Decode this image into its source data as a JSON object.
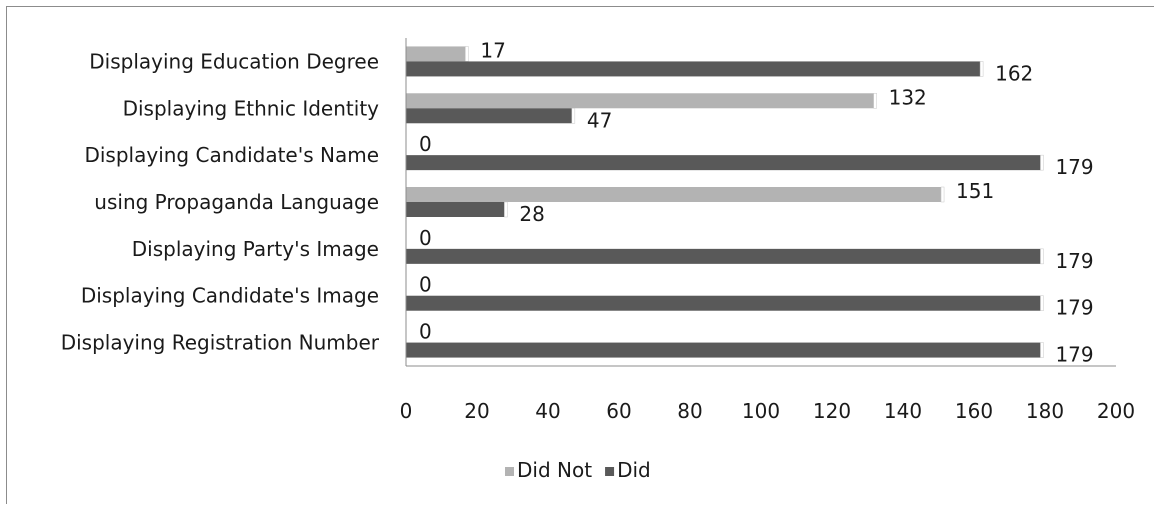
{
  "chart_data": {
    "type": "bar",
    "orientation": "horizontal",
    "categories": [
      "Displaying Education Degree",
      "Displaying Ethnic Identity",
      "Displaying Candidate's Name",
      "using Propaganda Language",
      "Displaying Party's Image",
      "Displaying Candidate's Image",
      "Displaying Registration Number"
    ],
    "series": [
      {
        "name": "Did Not",
        "values": [
          17,
          132,
          0,
          151,
          0,
          0,
          0
        ],
        "color": "#b3b3b3"
      },
      {
        "name": "Did",
        "values": [
          162,
          47,
          179,
          28,
          179,
          179,
          179
        ],
        "color": "#595959"
      }
    ],
    "xlim": [
      0,
      200
    ],
    "xticks": [
      0,
      20,
      40,
      60,
      80,
      100,
      120,
      140,
      160,
      180,
      200
    ],
    "title": "",
    "xlabel": "",
    "ylabel": "",
    "grid": false,
    "legend_position": "bottom"
  }
}
